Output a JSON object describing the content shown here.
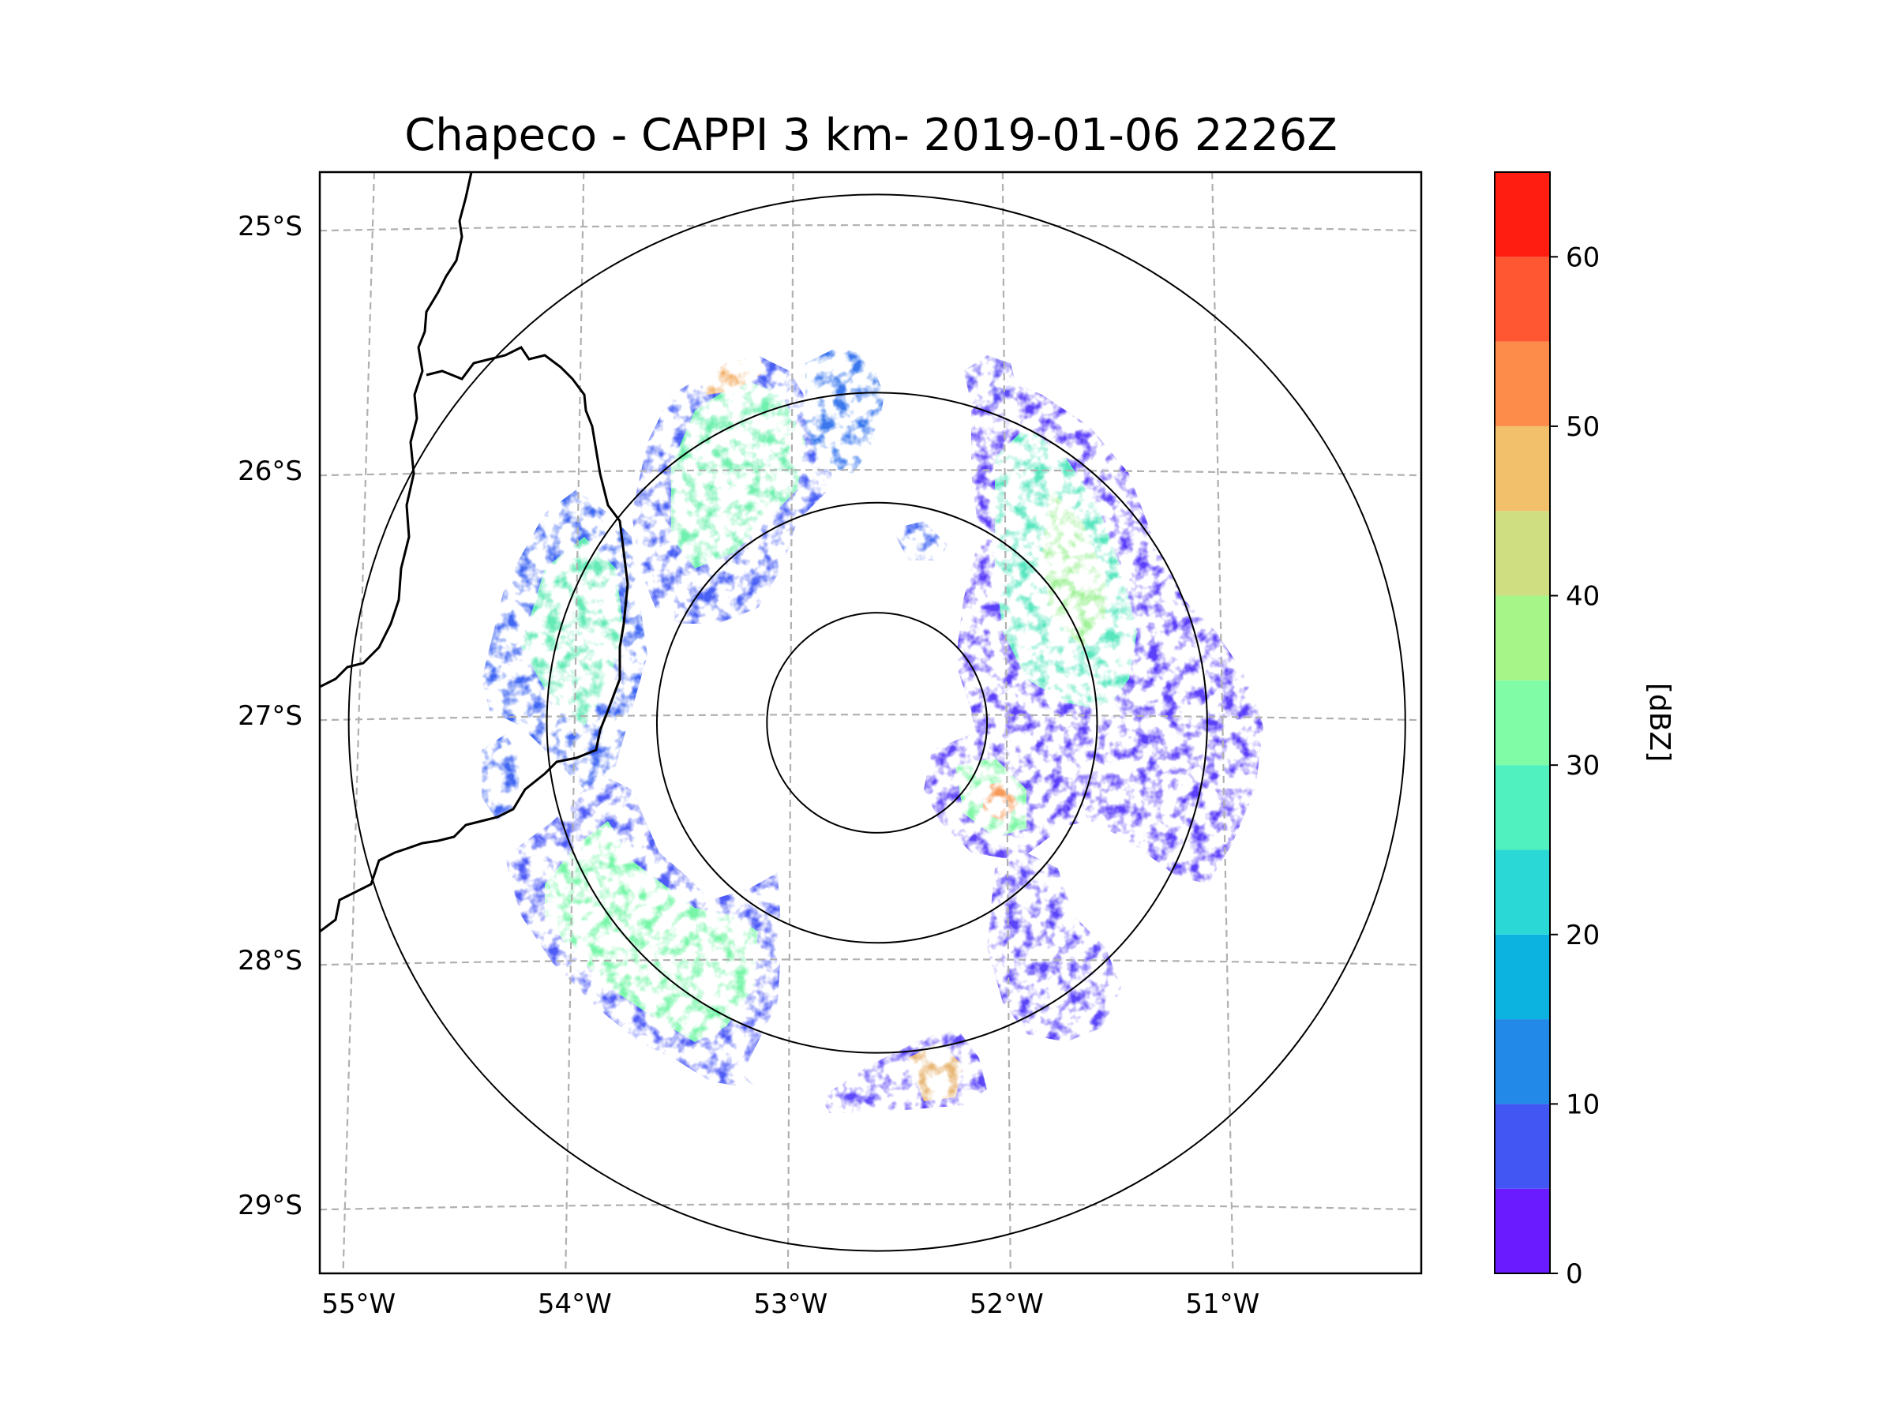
{
  "title": "Chapeco - CAPPI 3 km- 2019-01-06 2226Z",
  "map": {
    "extent": {
      "lon_min": -55.18,
      "lon_max": -50.08,
      "lat_min": -29.28,
      "lat_max": -24.78
    },
    "radar_center": {
      "lon": -52.6,
      "lat": -27.03
    },
    "range_rings_km": [
      50,
      100,
      150,
      240
    ],
    "lat_ticks": [
      {
        "value": -25,
        "label": "25°S"
      },
      {
        "value": -26,
        "label": "26°S"
      },
      {
        "value": -27,
        "label": "27°S"
      },
      {
        "value": -28,
        "label": "28°S"
      },
      {
        "value": -29,
        "label": "29°S"
      }
    ],
    "lon_ticks": [
      {
        "value": -55,
        "label": "55°W"
      },
      {
        "value": -54,
        "label": "54°W"
      },
      {
        "value": -53,
        "label": "53°W"
      },
      {
        "value": -52,
        "label": "52°W"
      },
      {
        "value": -51,
        "label": "51°W"
      }
    ],
    "border_color": "#000000",
    "grid_color": "#b0b0b0"
  },
  "colorbar": {
    "label": "[dBZ]",
    "min": 0,
    "max": 65,
    "step": 5,
    "ticks": [
      {
        "value": 0,
        "label": "0"
      },
      {
        "value": 10,
        "label": "10"
      },
      {
        "value": 20,
        "label": "20"
      },
      {
        "value": 30,
        "label": "30"
      },
      {
        "value": 40,
        "label": "40"
      },
      {
        "value": 50,
        "label": "50"
      },
      {
        "value": 60,
        "label": "60"
      }
    ],
    "colors": [
      "#6a1bff",
      "#4256f4",
      "#2289e9",
      "#0cb3e0",
      "#2ad9d5",
      "#51f0bf",
      "#7ffca5",
      "#a6f589",
      "#cede80",
      "#f2c06a",
      "#fd8c4a",
      "#ff5732",
      "#ff1c10"
    ]
  }
}
